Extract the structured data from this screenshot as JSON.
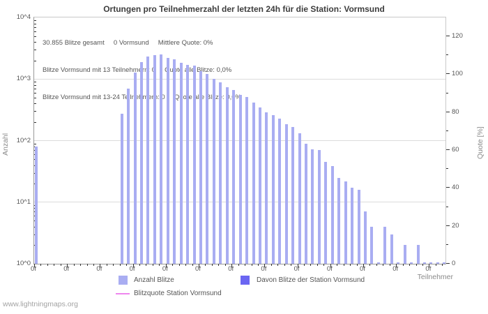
{
  "title": "Ortungen pro Teilnehmerzahl der letzten 24h für die Station: Vormsund",
  "annotation": {
    "lines": [
      "30.855 Blitze gesamt     0 Vormsund     Mittlere Quote: 0%",
      "Blitze Vormsund mit 13 Teilnehmern: 0     Quote alle Blitze: 0,0%",
      "Blitze Vormsund mit 13-24 Teilnehmern: 0     Quote alle Blitze: 0,0%"
    ]
  },
  "axes": {
    "y_left": {
      "label": "Anzahl",
      "tick_labels": [
        "10^4",
        "10^3",
        "10^2",
        "10^1",
        "10^0"
      ]
    },
    "y_right": {
      "label": "Quote [%]",
      "tick_labels": [
        "120",
        "100",
        "80",
        "60",
        "40",
        "20",
        "0"
      ]
    },
    "x": {
      "label": "Teilnehmer",
      "major_tick_label": "0f",
      "major_tick_count": 13,
      "minors_per_major": 5
    }
  },
  "legend": {
    "items": [
      {
        "label": "Anzahl Blitze",
        "color": "#a9adf2",
        "swatch": "square"
      },
      {
        "label": "Davon Blitze der Station Vormsund",
        "color": "#6b66f2",
        "swatch": "square"
      },
      {
        "label": "Blitzquote Station Vormsund",
        "color": "#ee86ee",
        "swatch": "line"
      }
    ]
  },
  "footer": "www.lightningmaps.org",
  "colors": {
    "bar": "#a9adf2",
    "station_bar": "#6b66f2",
    "quote_line": "#ee86ee",
    "grid": "#dcdcdc"
  },
  "chart_data": {
    "type": "bar",
    "title": "Ortungen pro Teilnehmerzahl der letzten 24h für die Station: Vormsund",
    "xlabel": "Teilnehmer",
    "ylabel_left": "Anzahl",
    "ylabel_right": "Quote [%]",
    "y_scale": "log",
    "ylim": [
      1,
      10000
    ],
    "right_ylim": [
      0,
      130
    ],
    "grid": true,
    "legend_position": "bottom",
    "series": [
      {
        "name": "Anzahl Blitze",
        "color": "#a9adf2",
        "points": [
          [
            0,
            80
          ],
          [
            13,
            270
          ],
          [
            14,
            690
          ],
          [
            15,
            1270
          ],
          [
            16,
            1870
          ],
          [
            17,
            2330
          ],
          [
            18,
            2420
          ],
          [
            19,
            2520
          ],
          [
            20,
            2230
          ],
          [
            21,
            2080
          ],
          [
            22,
            1850
          ],
          [
            23,
            1690
          ],
          [
            24,
            1650
          ],
          [
            25,
            1350
          ],
          [
            26,
            1200
          ],
          [
            27,
            1020
          ],
          [
            28,
            880
          ],
          [
            29,
            740
          ],
          [
            30,
            670
          ],
          [
            31,
            550
          ],
          [
            32,
            510
          ],
          [
            33,
            410
          ],
          [
            34,
            350
          ],
          [
            35,
            290
          ],
          [
            36,
            260
          ],
          [
            37,
            225
          ],
          [
            38,
            185
          ],
          [
            39,
            165
          ],
          [
            40,
            130
          ],
          [
            41,
            90
          ],
          [
            42,
            73
          ],
          [
            43,
            70
          ],
          [
            44,
            45
          ],
          [
            45,
            39
          ],
          [
            46,
            25
          ],
          [
            47,
            22
          ],
          [
            48,
            17
          ],
          [
            49,
            16
          ],
          [
            50,
            7
          ],
          [
            51,
            4
          ],
          [
            52,
            1
          ],
          [
            53,
            4
          ],
          [
            54,
            3
          ],
          [
            55,
            1
          ],
          [
            56,
            2
          ],
          [
            57,
            1
          ],
          [
            58,
            2
          ],
          [
            59,
            1
          ],
          [
            60,
            1
          ],
          [
            61,
            1
          ],
          [
            62,
            1
          ]
        ]
      },
      {
        "name": "Davon Blitze der Station Vormsund",
        "color": "#6b66f2",
        "points": []
      },
      {
        "name": "Blitzquote Station Vormsund",
        "color": "#ee86ee",
        "type": "line",
        "points": []
      }
    ]
  }
}
